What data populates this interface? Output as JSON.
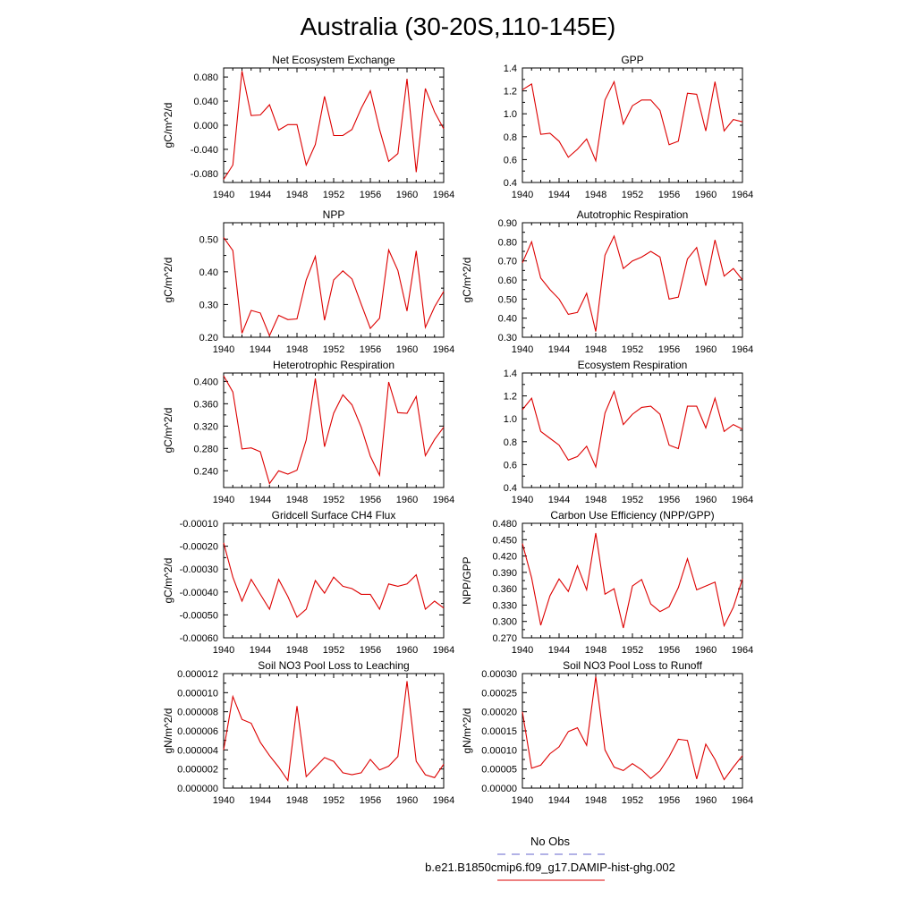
{
  "title": "Australia (30-20S,110-145E)",
  "legend": {
    "placement": "bottom-center",
    "items": [
      {
        "label": "No Obs",
        "color": "#6666cc",
        "dash": true
      },
      {
        "label": "b.e21.B1850cmip6.f09_g17.DAMIP-hist-ghg.002",
        "color": "#dd0000",
        "dash": false
      }
    ]
  },
  "chart_data": [
    {
      "type": "line",
      "title": "Net Ecosystem Exchange",
      "ylabel": "gC/m^2/d",
      "xlim": [
        1940,
        1964
      ],
      "ylim": [
        -0.095,
        0.095
      ],
      "xticks": [
        "1940",
        "1944",
        "1948",
        "1952",
        "1956",
        "1960",
        "1964"
      ],
      "yticks": [
        "-0.080",
        "-0.040",
        "0.000",
        "0.040",
        "0.080"
      ],
      "color": "#dd0000",
      "x": [
        1940,
        1941,
        1942,
        1943,
        1944,
        1945,
        1946,
        1947,
        1948,
        1949,
        1950,
        1951,
        1952,
        1953,
        1954,
        1955,
        1956,
        1957,
        1958,
        1959,
        1960,
        1961,
        1962,
        1963,
        1964
      ],
      "values": [
        -0.09,
        -0.066,
        0.09,
        0.016,
        0.017,
        0.034,
        -0.008,
        0.001,
        0.001,
        -0.066,
        -0.032,
        0.048,
        -0.017,
        -0.017,
        -0.007,
        0.028,
        0.057,
        -0.007,
        -0.06,
        -0.047,
        0.077,
        -0.078,
        0.061,
        0.022,
        -0.006
      ]
    },
    {
      "type": "line",
      "title": "GPP",
      "ylabel": "",
      "xlim": [
        1940,
        1964
      ],
      "ylim": [
        0.4,
        1.4
      ],
      "xticks": [
        "1940",
        "1944",
        "1948",
        "1952",
        "1956",
        "1960",
        "1964"
      ],
      "yticks": [
        "0.4",
        "0.6",
        "0.8",
        "1.0",
        "1.2",
        "1.4"
      ],
      "color": "#dd0000",
      "x": [
        1940,
        1941,
        1942,
        1943,
        1944,
        1945,
        1946,
        1947,
        1948,
        1949,
        1950,
        1951,
        1952,
        1953,
        1954,
        1955,
        1956,
        1957,
        1958,
        1959,
        1960,
        1961,
        1962,
        1963,
        1964
      ],
      "values": [
        1.21,
        1.26,
        0.82,
        0.83,
        0.76,
        0.62,
        0.69,
        0.78,
        0.59,
        1.12,
        1.28,
        0.91,
        1.07,
        1.12,
        1.12,
        1.03,
        0.73,
        0.76,
        1.18,
        1.17,
        0.85,
        1.28,
        0.85,
        0.95,
        0.93
      ]
    },
    {
      "type": "line",
      "title": "NPP",
      "ylabel": "gC/m^2/d",
      "xlim": [
        1940,
        1964
      ],
      "ylim": [
        0.2,
        0.55
      ],
      "xticks": [
        "1940",
        "1944",
        "1948",
        "1952",
        "1956",
        "1960",
        "1964"
      ],
      "yticks": [
        "0.20",
        "0.30",
        "0.40",
        "0.50"
      ],
      "color": "#dd0000",
      "x": [
        1940,
        1941,
        1942,
        1943,
        1944,
        1945,
        1946,
        1947,
        1948,
        1949,
        1950,
        1951,
        1952,
        1953,
        1954,
        1955,
        1956,
        1957,
        1958,
        1959,
        1960,
        1961,
        1962,
        1963,
        1964
      ],
      "values": [
        0.505,
        0.465,
        0.212,
        0.282,
        0.274,
        0.205,
        0.267,
        0.254,
        0.256,
        0.375,
        0.447,
        0.252,
        0.375,
        0.403,
        0.378,
        0.301,
        0.227,
        0.258,
        0.467,
        0.404,
        0.28,
        0.464,
        0.23,
        0.293,
        0.34
      ]
    },
    {
      "type": "line",
      "title": "Autotrophic Respiration",
      "ylabel": "gC/m^2/d",
      "xlim": [
        1940,
        1964
      ],
      "ylim": [
        0.3,
        0.9
      ],
      "xticks": [
        "1940",
        "1944",
        "1948",
        "1952",
        "1956",
        "1960",
        "1964"
      ],
      "yticks": [
        "0.30",
        "0.40",
        "0.50",
        "0.60",
        "0.70",
        "0.80",
        "0.90"
      ],
      "color": "#dd0000",
      "x": [
        1940,
        1941,
        1942,
        1943,
        1944,
        1945,
        1946,
        1947,
        1948,
        1949,
        1950,
        1951,
        1952,
        1953,
        1954,
        1955,
        1956,
        1957,
        1958,
        1959,
        1960,
        1961,
        1962,
        1963,
        1964
      ],
      "values": [
        0.69,
        0.8,
        0.61,
        0.55,
        0.5,
        0.42,
        0.43,
        0.53,
        0.33,
        0.73,
        0.83,
        0.66,
        0.7,
        0.72,
        0.75,
        0.72,
        0.5,
        0.51,
        0.71,
        0.77,
        0.57,
        0.81,
        0.62,
        0.66,
        0.6
      ]
    },
    {
      "type": "line",
      "title": "Heterotrophic Respiration",
      "ylabel": "gC/m^2/d",
      "xlim": [
        1940,
        1964
      ],
      "ylim": [
        0.21,
        0.415
      ],
      "xticks": [
        "1940",
        "1944",
        "1948",
        "1952",
        "1956",
        "1960",
        "1964"
      ],
      "yticks": [
        "0.240",
        "0.280",
        "0.320",
        "0.360",
        "0.400"
      ],
      "color": "#dd0000",
      "x": [
        1940,
        1941,
        1942,
        1943,
        1944,
        1945,
        1946,
        1947,
        1948,
        1949,
        1950,
        1951,
        1952,
        1953,
        1954,
        1955,
        1956,
        1957,
        1958,
        1959,
        1960,
        1961,
        1962,
        1963,
        1964
      ],
      "values": [
        0.41,
        0.381,
        0.279,
        0.281,
        0.274,
        0.217,
        0.24,
        0.234,
        0.241,
        0.295,
        0.405,
        0.283,
        0.343,
        0.376,
        0.358,
        0.318,
        0.266,
        0.232,
        0.399,
        0.344,
        0.343,
        0.373,
        0.267,
        0.296,
        0.318
      ]
    },
    {
      "type": "line",
      "title": "Ecosystem Respiration",
      "ylabel": "",
      "xlim": [
        1940,
        1964
      ],
      "ylim": [
        0.4,
        1.4
      ],
      "xticks": [
        "1940",
        "1944",
        "1948",
        "1952",
        "1956",
        "1960",
        "1964"
      ],
      "yticks": [
        "0.4",
        "0.6",
        "0.8",
        "1.0",
        "1.2",
        "1.4"
      ],
      "color": "#dd0000",
      "x": [
        1940,
        1941,
        1942,
        1943,
        1944,
        1945,
        1946,
        1947,
        1948,
        1949,
        1950,
        1951,
        1952,
        1953,
        1954,
        1955,
        1956,
        1957,
        1958,
        1959,
        1960,
        1961,
        1962,
        1963,
        1964
      ],
      "values": [
        1.08,
        1.18,
        0.89,
        0.83,
        0.77,
        0.64,
        0.67,
        0.76,
        0.58,
        1.05,
        1.24,
        0.95,
        1.04,
        1.1,
        1.11,
        1.04,
        0.77,
        0.74,
        1.11,
        1.11,
        0.92,
        1.18,
        0.89,
        0.95,
        0.91
      ]
    },
    {
      "type": "line",
      "title": "Gridcell Surface CH4 Flux",
      "ylabel": "gC/m^2/d",
      "xlim": [
        1940,
        1964
      ],
      "ylim": [
        -0.0006,
        -0.0001
      ],
      "xticks": [
        "1940",
        "1944",
        "1948",
        "1952",
        "1956",
        "1960",
        "1964"
      ],
      "yticks": [
        "-0.00060",
        "-0.00050",
        "-0.00040",
        "-0.00030",
        "-0.00020",
        "-0.00010"
      ],
      "color": "#dd0000",
      "x": [
        1940,
        1941,
        1942,
        1943,
        1944,
        1945,
        1946,
        1947,
        1948,
        1949,
        1950,
        1951,
        1952,
        1953,
        1954,
        1955,
        1956,
        1957,
        1958,
        1959,
        1960,
        1961,
        1962,
        1963,
        1964
      ],
      "values": [
        -0.000185,
        -0.000335,
        -0.00044,
        -0.000345,
        -0.00041,
        -0.000475,
        -0.000345,
        -0.00042,
        -0.00051,
        -0.000475,
        -0.00035,
        -0.000405,
        -0.000335,
        -0.000375,
        -0.000385,
        -0.00041,
        -0.00041,
        -0.000475,
        -0.000365,
        -0.000375,
        -0.000365,
        -0.000325,
        -0.000475,
        -0.00044,
        -0.00047
      ]
    },
    {
      "type": "line",
      "title": "Carbon Use Efficiency (NPP/GPP)",
      "ylabel": "NPP/GPP",
      "xlim": [
        1940,
        1964
      ],
      "ylim": [
        0.27,
        0.48
      ],
      "xticks": [
        "1940",
        "1944",
        "1948",
        "1952",
        "1956",
        "1960",
        "1964"
      ],
      "yticks": [
        "0.270",
        "0.300",
        "0.330",
        "0.360",
        "0.390",
        "0.420",
        "0.450",
        "0.480"
      ],
      "color": "#dd0000",
      "x": [
        1940,
        1941,
        1942,
        1943,
        1944,
        1945,
        1946,
        1947,
        1948,
        1949,
        1950,
        1951,
        1952,
        1953,
        1954,
        1955,
        1956,
        1957,
        1958,
        1959,
        1960,
        1961,
        1962,
        1963,
        1964
      ],
      "values": [
        0.443,
        0.38,
        0.293,
        0.347,
        0.378,
        0.355,
        0.402,
        0.358,
        0.462,
        0.35,
        0.36,
        0.288,
        0.365,
        0.377,
        0.332,
        0.318,
        0.327,
        0.362,
        0.415,
        0.358,
        0.365,
        0.372,
        0.292,
        0.326,
        0.378
      ]
    },
    {
      "type": "line",
      "title": "Soil NO3 Pool Loss to Leaching",
      "ylabel": "gN/m^2/d",
      "xlim": [
        1940,
        1964
      ],
      "ylim": [
        0,
        1.2e-05
      ],
      "xticks": [
        "1940",
        "1944",
        "1948",
        "1952",
        "1956",
        "1960",
        "1964"
      ],
      "yticks": [
        "0.000000",
        "0.000002",
        "0.000004",
        "0.000006",
        "0.000008",
        "0.000010",
        "0.000012"
      ],
      "color": "#dd0000",
      "x": [
        1940,
        1941,
        1942,
        1943,
        1944,
        1945,
        1946,
        1947,
        1948,
        1949,
        1950,
        1951,
        1952,
        1953,
        1954,
        1955,
        1956,
        1957,
        1958,
        1959,
        1960,
        1961,
        1962,
        1963,
        1964
      ],
      "values": [
        4e-06,
        9.6e-06,
        7.2e-06,
        6.8e-06,
        4.8e-06,
        3.4e-06,
        2.2e-06,
        8e-07,
        8.6e-06,
        1.2e-06,
        2.2e-06,
        3.2e-06,
        2.8e-06,
        1.6e-06,
        1.4e-06,
        1.6e-06,
        3e-06,
        1.9e-06,
        2.3e-06,
        3.3e-06,
        1.12e-05,
        2.8e-06,
        1.4e-06,
        1.1e-06,
        2.5e-06
      ]
    },
    {
      "type": "line",
      "title": "Soil NO3 Pool Loss to Runoff",
      "ylabel": "gN/m^2/d",
      "xlim": [
        1940,
        1964
      ],
      "ylim": [
        0,
        0.0003
      ],
      "xticks": [
        "1940",
        "1944",
        "1948",
        "1952",
        "1956",
        "1960",
        "1964"
      ],
      "yticks": [
        "0.00000",
        "0.00005",
        "0.00010",
        "0.00015",
        "0.00020",
        "0.00025",
        "0.00030"
      ],
      "color": "#dd0000",
      "x": [
        1940,
        1941,
        1942,
        1943,
        1944,
        1945,
        1946,
        1947,
        1948,
        1949,
        1950,
        1951,
        1952,
        1953,
        1954,
        1955,
        1956,
        1957,
        1958,
        1959,
        1960,
        1961,
        1962,
        1963,
        1964
      ],
      "values": [
        0.0002,
        5.2e-05,
        6e-05,
        9e-05,
        0.000108,
        0.000148,
        0.000158,
        0.000112,
        0.000292,
        0.0001,
        5.5e-05,
        4.6e-05,
        6.4e-05,
        4.8e-05,
        2.5e-05,
        4.5e-05,
        8.2e-05,
        0.000128,
        0.000125,
        2.4e-05,
        0.000115,
        7.5e-05,
        2.2e-05,
        5.5e-05,
        8.5e-05
      ]
    }
  ]
}
